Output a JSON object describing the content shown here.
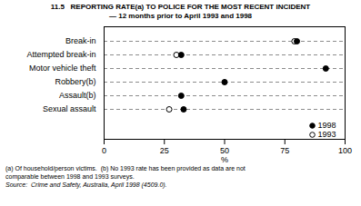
{
  "chart_data": {
    "type": "dot",
    "orientation": "horizontal",
    "title": "11.5   REPORTING RATE(a) TO POLICE FOR THE MOST RECENT INCIDENT",
    "subtitle": "— 12 months prior to April 1993 and 1998",
    "categories": [
      "Break-in",
      "Attempted break-in",
      "Motor vehicle theft",
      "Robbery(b)",
      "Assault(b)",
      "Sexual assault"
    ],
    "series": [
      {
        "name": "1998",
        "color": "#000000",
        "marker": "filled",
        "values": [
          80,
          32,
          92,
          50,
          32,
          33
        ]
      },
      {
        "name": "1993",
        "color": "#000000",
        "marker": "open",
        "values": [
          79,
          30,
          null,
          null,
          null,
          27
        ]
      }
    ],
    "xlabel": "%",
    "xlim": [
      0,
      100
    ],
    "xticks": [
      0,
      25,
      50,
      75,
      100
    ],
    "grid": true,
    "legend": "lower right",
    "annotations": [
      "(a) Of household/person victims.  (b) No 1993 rate has been provided as data are not",
      "comparable between 1998 and 1993 surveys.",
      "Source:  Crime and Safety, Australia, April 1998 (4509.0)."
    ]
  }
}
